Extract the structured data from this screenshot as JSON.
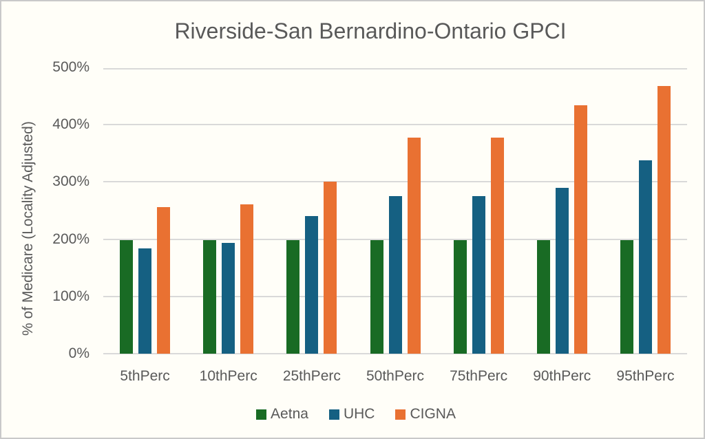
{
  "chart_data": {
    "type": "bar",
    "title": "Riverside-San Bernardino-Ontario GPCI",
    "xlabel": "",
    "ylabel": "% of Medicare (Locality Adjusted)",
    "categories": [
      "5thPerc",
      "10thPerc",
      "25thPerc",
      "50thPerc",
      "75thPerc",
      "90thPerc",
      "95thPerc"
    ],
    "series": [
      {
        "name": "Aetna",
        "color": "#196B24",
        "values": [
          198,
          198,
          198,
          198,
          198,
          198,
          198
        ]
      },
      {
        "name": "UHC",
        "color": "#156082",
        "values": [
          184,
          193,
          241,
          275,
          275,
          290,
          338
        ]
      },
      {
        "name": "CIGNA",
        "color": "#E97132",
        "values": [
          256,
          261,
          301,
          377,
          377,
          434,
          468
        ]
      }
    ],
    "ylim": [
      0,
      500
    ],
    "ytick_step": 100,
    "ytick_labels": [
      "0%",
      "100%",
      "200%",
      "300%",
      "400%",
      "500%"
    ],
    "grid": "horizontal",
    "legend_position": "bottom"
  },
  "theme": {
    "background": "#FFFEF8",
    "frame_border": "#C9C9C9",
    "gridline": "#D9D9D9",
    "text": "#595959"
  }
}
